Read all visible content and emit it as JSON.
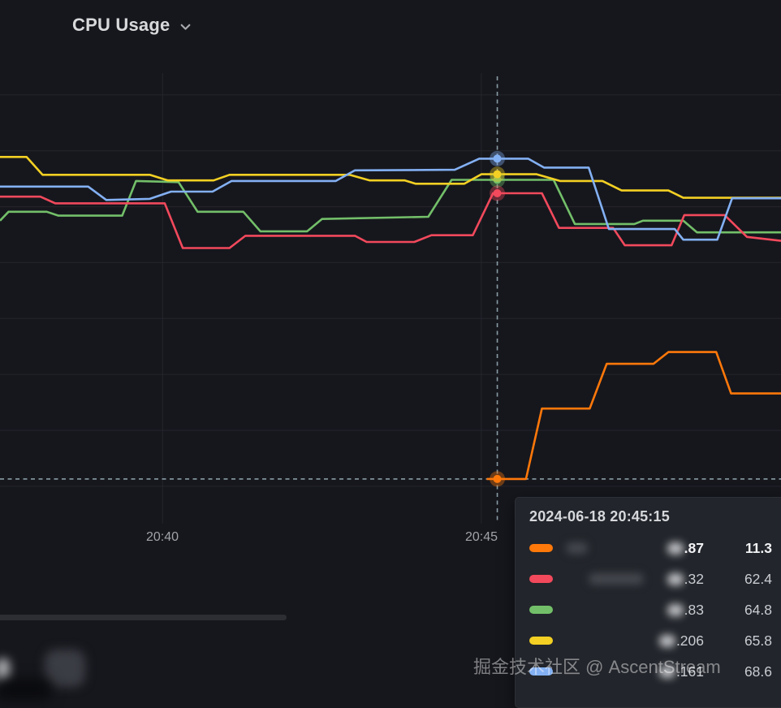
{
  "panel": {
    "title": "CPU Usage"
  },
  "watermark": "掘金技术社区 @ AscentStream",
  "colors": {
    "background": "#16171d",
    "gridline": "#24262d",
    "axis_label": "#a0a3a8",
    "title_text": "#d8d9da",
    "crosshair": "#9db4bd",
    "tooltip_background": "#22252b",
    "orange": "#ff780a",
    "red": "#f2495c",
    "green": "#73bf69",
    "yellow": "#f3d023",
    "blue": "#83b0f3"
  },
  "chart_data": {
    "type": "line",
    "title": "CPU Usage",
    "x_axis": {
      "tick_labels": [
        "20:40",
        "20:45"
      ],
      "tick_times_sec": [
        0,
        300
      ],
      "time_range_sec": [
        -153,
        582
      ],
      "note": "times in seconds relative to 20:40; axis labels are times of day"
    },
    "y_axis": {
      "value_range": [
        3.3,
        83.9
      ],
      "gridline_values": [
        10,
        20,
        30,
        40,
        50,
        60,
        70,
        80
      ],
      "labels_visible": false
    },
    "grid": true,
    "legend_position": "bottom-blurred",
    "hover": {
      "timestamp": "2024-06-18 20:45:15",
      "t_sec": 315
    },
    "series": [
      {
        "name": "series-orange (name blurred)",
        "color": "#ff780a",
        "hover_value": 11.3,
        "points": [
          [
            305,
            11.3
          ],
          [
            342,
            11.3
          ],
          [
            357,
            23.9
          ],
          [
            402,
            23.9
          ],
          [
            418,
            31.9
          ],
          [
            462,
            31.9
          ],
          [
            476,
            34.0
          ],
          [
            521,
            34.0
          ],
          [
            535,
            26.6
          ],
          [
            582,
            26.6
          ]
        ]
      },
      {
        "name": "series-green (name blurred)",
        "color": "#73bf69",
        "hover_value": 64.8,
        "points": [
          [
            -153,
            57.5
          ],
          [
            -145,
            59.1
          ],
          [
            -109,
            59.1
          ],
          [
            -98,
            58.4
          ],
          [
            -38,
            58.4
          ],
          [
            -25,
            64.6
          ],
          [
            15,
            64.4
          ],
          [
            33,
            59.1
          ],
          [
            76,
            59.1
          ],
          [
            92,
            55.6
          ],
          [
            136,
            55.6
          ],
          [
            150,
            57.8
          ],
          [
            250,
            58.2
          ],
          [
            272,
            64.8
          ],
          [
            368,
            64.8
          ],
          [
            388,
            56.9
          ],
          [
            444,
            56.9
          ],
          [
            452,
            57.5
          ],
          [
            490,
            57.5
          ],
          [
            503,
            55.4
          ],
          [
            582,
            55.4
          ]
        ]
      },
      {
        "name": "series-yellow (name blurred)",
        "color": "#f3d023",
        "hover_value": 65.8,
        "points": [
          [
            -153,
            68.9
          ],
          [
            -128,
            68.9
          ],
          [
            -113,
            65.7
          ],
          [
            -12,
            65.7
          ],
          [
            5,
            64.7
          ],
          [
            48,
            64.7
          ],
          [
            63,
            65.7
          ],
          [
            176,
            65.7
          ],
          [
            195,
            64.7
          ],
          [
            228,
            64.7
          ],
          [
            238,
            64.1
          ],
          [
            284,
            64.1
          ],
          [
            300,
            65.8
          ],
          [
            352,
            65.8
          ],
          [
            374,
            64.6
          ],
          [
            414,
            64.6
          ],
          [
            432,
            62.9
          ],
          [
            476,
            62.9
          ],
          [
            490,
            61.6
          ],
          [
            582,
            61.6
          ]
        ]
      },
      {
        "name": "series-red (name blurred)",
        "color": "#f2495c",
        "hover_value": 62.4,
        "points": [
          [
            -153,
            61.8
          ],
          [
            -115,
            61.8
          ],
          [
            -101,
            60.6
          ],
          [
            2,
            60.6
          ],
          [
            19,
            52.6
          ],
          [
            63,
            52.6
          ],
          [
            78,
            54.8
          ],
          [
            181,
            54.8
          ],
          [
            192,
            53.7
          ],
          [
            237,
            53.7
          ],
          [
            253,
            54.9
          ],
          [
            292,
            54.9
          ],
          [
            311,
            62.4
          ],
          [
            357,
            62.4
          ],
          [
            373,
            56.2
          ],
          [
            424,
            56.2
          ],
          [
            435,
            53.1
          ],
          [
            479,
            53.1
          ],
          [
            491,
            58.5
          ],
          [
            529,
            58.5
          ],
          [
            550,
            54.6
          ],
          [
            582,
            53.9
          ]
        ]
      },
      {
        "name": "series-blue (name blurred)",
        "color": "#83b0f3",
        "hover_value": 68.6,
        "points": [
          [
            -153,
            63.6
          ],
          [
            -70,
            63.6
          ],
          [
            -53,
            61.2
          ],
          [
            -12,
            61.4
          ],
          [
            8,
            62.7
          ],
          [
            47,
            62.7
          ],
          [
            65,
            64.6
          ],
          [
            163,
            64.6
          ],
          [
            181,
            66.5
          ],
          [
            275,
            66.6
          ],
          [
            298,
            68.6
          ],
          [
            344,
            68.6
          ],
          [
            359,
            67.0
          ],
          [
            401,
            67.0
          ],
          [
            420,
            56.0
          ],
          [
            482,
            56.0
          ],
          [
            490,
            54.1
          ],
          [
            522,
            54.1
          ],
          [
            536,
            61.5
          ],
          [
            582,
            61.5
          ]
        ]
      }
    ]
  },
  "tooltip": {
    "header": "2024-06-18 20:45:15",
    "rows": [
      {
        "series": "orange",
        "color": "#ff780a",
        "value_fragment": ".87",
        "value": "11.3",
        "emphasized": true,
        "name_blur_width": 27,
        "name_blur_offset": 2
      },
      {
        "series": "red",
        "color": "#f2495c",
        "value_fragment": ".32",
        "value": "62.4",
        "emphasized": false,
        "name_blur_width": 68,
        "name_blur_offset": 30
      },
      {
        "series": "green",
        "color": "#73bf69",
        "value_fragment": ".83",
        "value": "64.8",
        "emphasized": false,
        "name_blur_width": 0,
        "name_blur_offset": 0
      },
      {
        "series": "yellow",
        "color": "#f3d023",
        "value_fragment": ".206",
        "value": "65.8",
        "emphasized": false,
        "name_blur_width": 0,
        "name_blur_offset": 0
      },
      {
        "series": "blue",
        "color": "#83b0f3",
        "value_fragment": ".161",
        "value": "68.6",
        "emphasized": false,
        "name_blur_width": 0,
        "name_blur_offset": 0
      }
    ]
  }
}
